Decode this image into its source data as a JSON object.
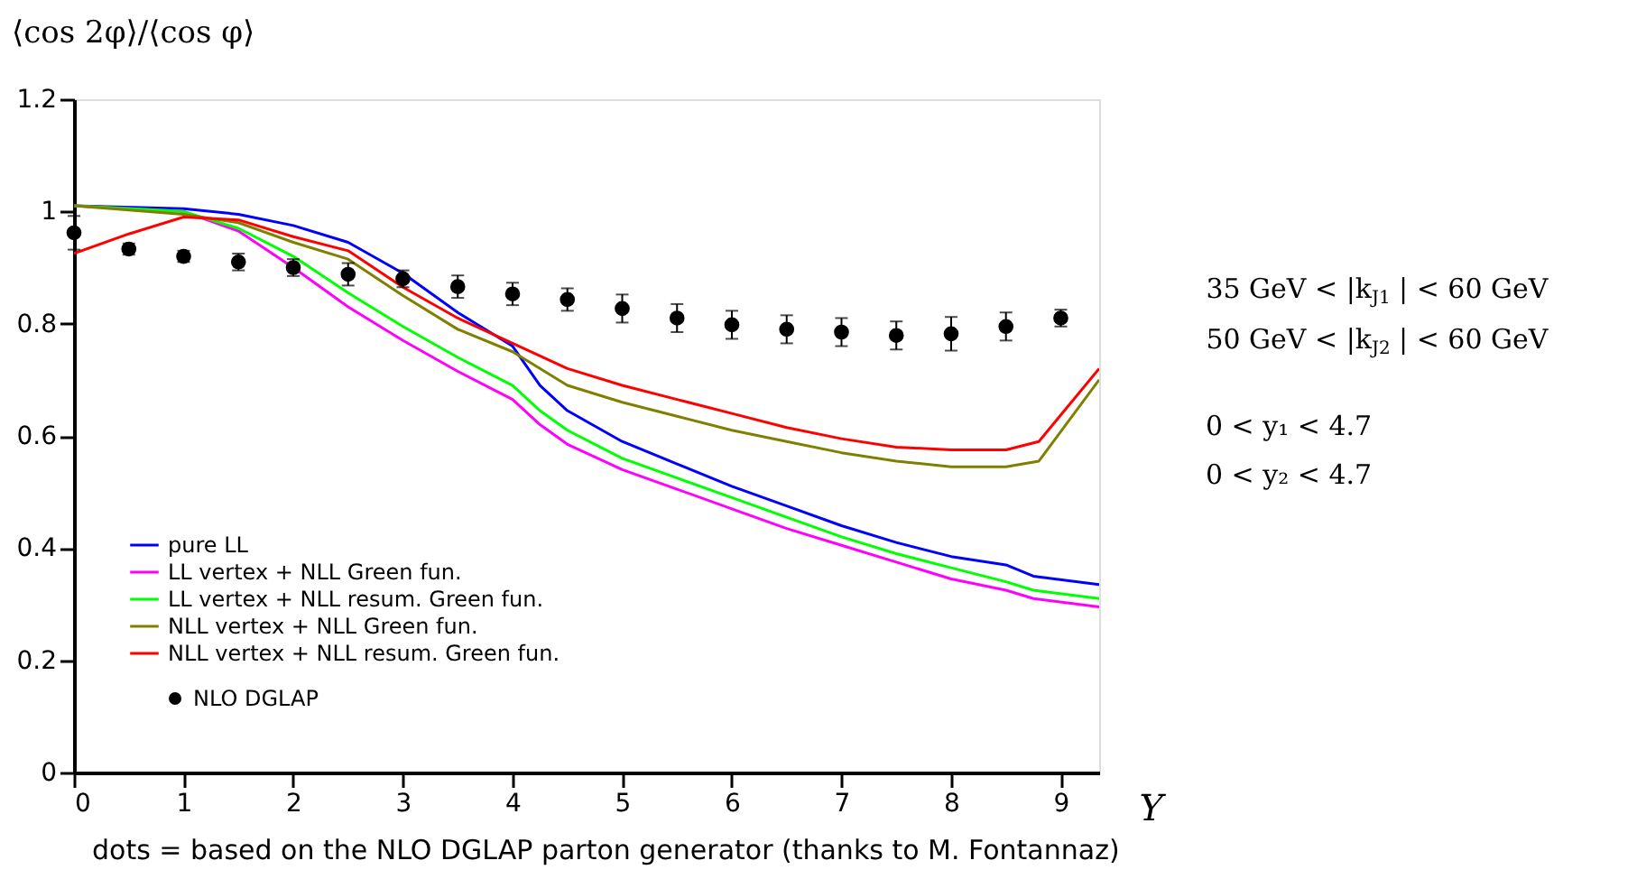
{
  "chart_data": {
    "type": "line",
    "ylabel": "⟨cos 2φ⟩/⟨cos φ⟩",
    "xlabel": "Y",
    "xlim": [
      0,
      9.35
    ],
    "xticks": [
      0,
      1,
      2,
      3,
      4,
      5,
      6,
      7,
      8,
      9
    ],
    "ylim": [
      0,
      1.2
    ],
    "yticks": [
      0,
      0.2,
      0.4,
      0.6,
      0.8,
      1,
      1.2
    ],
    "grid": false,
    "legend": "bottom left",
    "series": [
      {
        "name": "pure LL",
        "color": "#0000ff",
        "x": [
          0,
          1,
          1.5,
          2,
          2.5,
          3,
          3.5,
          4,
          4.25,
          4.5,
          5,
          5.5,
          6,
          6.5,
          7,
          7.5,
          8,
          8.5,
          8.75,
          9.35
        ],
        "values": [
          1.01,
          1.005,
          0.995,
          0.975,
          0.945,
          0.89,
          0.82,
          0.76,
          0.69,
          0.645,
          0.59,
          0.55,
          0.51,
          0.475,
          0.44,
          0.41,
          0.385,
          0.37,
          0.35,
          0.335
        ]
      },
      {
        "name": "LL vertex + NLL Green fun.",
        "color": "#ff00ff",
        "x": [
          0,
          1,
          1.5,
          2,
          2.5,
          3,
          3.5,
          4,
          4.25,
          4.5,
          5,
          5.5,
          6,
          6.5,
          7,
          7.5,
          8,
          8.5,
          8.75,
          9.35
        ],
        "values": [
          1.01,
          1.0,
          0.965,
          0.9,
          0.83,
          0.77,
          0.715,
          0.665,
          0.62,
          0.585,
          0.54,
          0.505,
          0.47,
          0.435,
          0.405,
          0.375,
          0.345,
          0.325,
          0.31,
          0.295
        ]
      },
      {
        "name": "LL vertex + NLL resum. Green fun.",
        "color": "#00ff00",
        "x": [
          0,
          1,
          1.5,
          2,
          2.5,
          3,
          3.5,
          4,
          4.25,
          4.5,
          5,
          5.5,
          6,
          6.5,
          7,
          7.5,
          8,
          8.5,
          8.75,
          9.35
        ],
        "values": [
          1.01,
          1.0,
          0.97,
          0.92,
          0.855,
          0.795,
          0.74,
          0.69,
          0.645,
          0.61,
          0.56,
          0.525,
          0.49,
          0.455,
          0.42,
          0.39,
          0.365,
          0.34,
          0.325,
          0.31
        ]
      },
      {
        "name": "NLL vertex + NLL Green fun.",
        "color": "#808000",
        "x": [
          0,
          1,
          1.5,
          2,
          2.5,
          3,
          3.5,
          4,
          4.5,
          5,
          5.5,
          6,
          6.5,
          7,
          7.5,
          8,
          8.5,
          8.8,
          9.35
        ],
        "values": [
          1.01,
          0.995,
          0.98,
          0.945,
          0.915,
          0.85,
          0.79,
          0.75,
          0.69,
          0.66,
          0.635,
          0.61,
          0.59,
          0.57,
          0.555,
          0.545,
          0.545,
          0.555,
          0.7
        ]
      },
      {
        "name": "NLL vertex + NLL resum. Green fun.",
        "color": "#ff0000",
        "x": [
          0,
          0.5,
          1,
          1.5,
          2,
          2.5,
          3,
          3.5,
          4,
          4.5,
          5,
          5.5,
          6,
          6.5,
          7,
          7.5,
          8,
          8.5,
          8.8,
          9.35
        ],
        "values": [
          0.925,
          0.96,
          0.99,
          0.985,
          0.955,
          0.93,
          0.865,
          0.81,
          0.765,
          0.72,
          0.69,
          0.665,
          0.64,
          0.615,
          0.595,
          0.58,
          0.575,
          0.575,
          0.59,
          0.72
        ]
      },
      {
        "name": "NLO DGLAP",
        "type": "scatter",
        "marker": "circle",
        "color": "#000000",
        "x": [
          0,
          0.5,
          1,
          1.5,
          2,
          2.5,
          3,
          3.5,
          4,
          4.5,
          5,
          5.5,
          6,
          6.5,
          7,
          7.5,
          8,
          8.5,
          9
        ],
        "values": [
          0.962,
          0.933,
          0.92,
          0.91,
          0.9,
          0.888,
          0.88,
          0.866,
          0.853,
          0.843,
          0.827,
          0.81,
          0.798,
          0.79,
          0.785,
          0.779,
          0.782,
          0.795,
          0.81
        ],
        "errors": [
          0.03,
          0.01,
          0.01,
          0.015,
          0.015,
          0.02,
          0.015,
          0.02,
          0.02,
          0.02,
          0.025,
          0.025,
          0.025,
          0.025,
          0.025,
          0.025,
          0.03,
          0.025,
          0.015
        ]
      }
    ],
    "annotations": [
      "35 GeV < |k$_{J1}$| < 60 GeV",
      "50 GeV < |k$_{J2}$| < 60 GeV",
      "0 < y₁ < 4.7",
      "0 < y₂ < 4.7",
      "dots = based on the NLO DGLAP parton generator (thanks to M. Fontannaz)"
    ]
  }
}
